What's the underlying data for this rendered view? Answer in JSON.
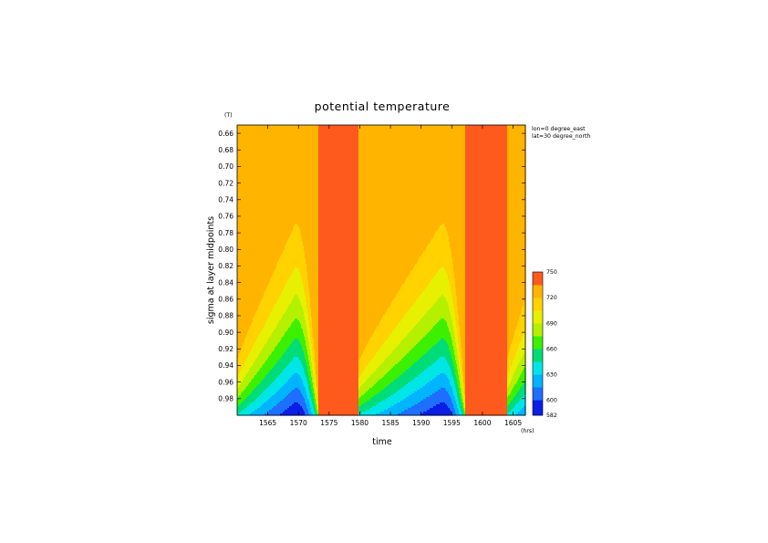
{
  "chart_data": {
    "type": "heatmap",
    "title": "potential temperature",
    "units_label": "(T)",
    "xlabel": "time",
    "ylabel": "sigma at layer midpoints",
    "x_unit": "(hrs)",
    "annotations": [
      "lon=0 degree_east",
      "lat=30 degree_north"
    ],
    "xlim": [
      1560,
      1607
    ],
    "ylim": [
      0.65,
      1.0
    ],
    "x_ticks": [
      "1565",
      "1570",
      "1575",
      "1580",
      "1585",
      "1590",
      "1595",
      "1600",
      "1605"
    ],
    "x_tick_values": [
      1565,
      1570,
      1575,
      1580,
      1585,
      1590,
      1595,
      1600,
      1605
    ],
    "y_ticks": [
      "0.66",
      "0.68",
      "0.70",
      "0.72",
      "0.74",
      "0.76",
      "0.78",
      "0.80",
      "0.82",
      "0.84",
      "0.86",
      "0.88",
      "0.90",
      "0.92",
      "0.94",
      "0.96",
      "0.98"
    ],
    "y_tick_values": [
      0.66,
      0.68,
      0.7,
      0.72,
      0.74,
      0.76,
      0.78,
      0.8,
      0.82,
      0.84,
      0.86,
      0.88,
      0.9,
      0.92,
      0.94,
      0.96,
      0.98
    ],
    "colorbar": {
      "labels": [
        "582",
        "600",
        "630",
        "660",
        "690",
        "720",
        "750"
      ],
      "label_values": [
        582,
        600,
        630,
        660,
        690,
        720,
        750
      ],
      "levels": [
        582,
        600,
        615,
        630,
        645,
        660,
        675,
        690,
        705,
        720,
        735,
        750
      ],
      "colors": [
        "#0a1ee6",
        "#1e6eff",
        "#00b4ff",
        "#00e6e6",
        "#00dc78",
        "#3cf000",
        "#b4f000",
        "#e6f000",
        "#ffd200",
        "#ffb400",
        "#ff5a1e",
        "#ff2828"
      ]
    },
    "pulses": [
      {
        "start": 1560,
        "peak": 1569.5,
        "end": 1573.2,
        "min_value": 590
      },
      {
        "start": 1579.8,
        "peak": 1593.4,
        "end": 1597.2,
        "min_value": 590
      },
      {
        "start": 1604,
        "peak": 1611,
        "end": 1614,
        "min_value": 590
      }
    ],
    "background_value": 728,
    "neutral_value": 738
  }
}
